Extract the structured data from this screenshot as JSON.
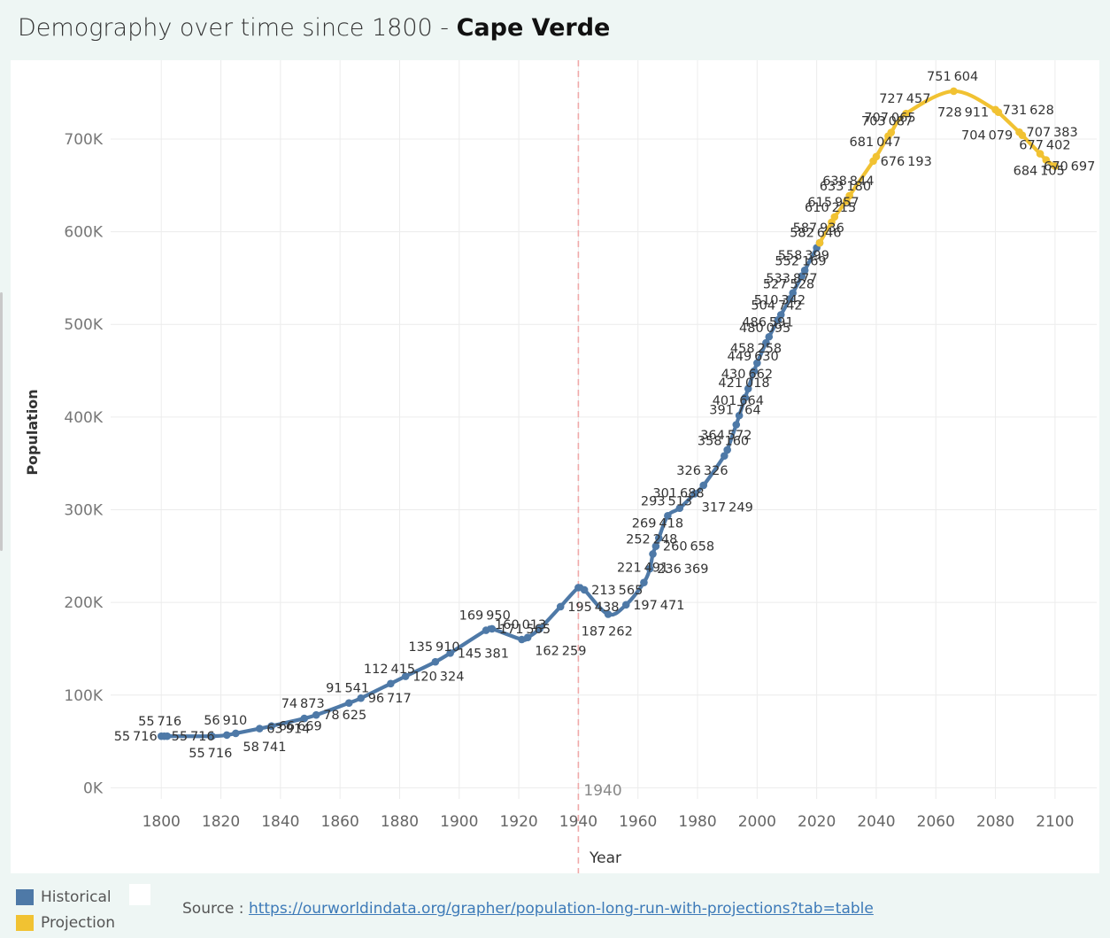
{
  "title": {
    "prefix": "Demography over time since 1800 - ",
    "country": "Cape Verde"
  },
  "legend": {
    "items": [
      {
        "label": "Historical",
        "color": "#4e79a7"
      },
      {
        "label": "Projection",
        "color": "#f1c232"
      }
    ]
  },
  "source": {
    "prefix": "Source : ",
    "link_text": "https://ourworldindata.org/grapher/population-long-run-with-projections?tab=table"
  },
  "chart_data": {
    "type": "line",
    "xlabel": "Year",
    "ylabel": "Population",
    "xlim": [
      1783,
      2114
    ],
    "ylim": [
      -12000,
      785000
    ],
    "xticks": [
      1800,
      1820,
      1840,
      1860,
      1880,
      1900,
      1920,
      1940,
      1960,
      1980,
      2000,
      2020,
      2040,
      2060,
      2080,
      2100
    ],
    "yticks": [
      {
        "value": 0,
        "label": "0K"
      },
      {
        "value": 100000,
        "label": "100K"
      },
      {
        "value": 200000,
        "label": "200K"
      },
      {
        "value": 300000,
        "label": "300K"
      },
      {
        "value": 400000,
        "label": "400K"
      },
      {
        "value": 500000,
        "label": "500K"
      },
      {
        "value": 600000,
        "label": "600K"
      },
      {
        "value": 700000,
        "label": "700K"
      }
    ],
    "grid": true,
    "reference_line": {
      "x": 1940,
      "label": "1940",
      "color": "#f0a9a9"
    },
    "series": [
      {
        "name": "Historical",
        "color": "#4e79a7",
        "points": [
          {
            "x": 1800,
            "y": 55716,
            "label": "55716"
          },
          {
            "x": 1801,
            "y": 55716,
            "label": "55716"
          },
          {
            "x": 1802,
            "y": 55716,
            "label": "55716"
          },
          {
            "x": 1817,
            "y": 55716,
            "label": "55716"
          },
          {
            "x": 1822,
            "y": 56910,
            "label": "56910"
          },
          {
            "x": 1825,
            "y": 58741,
            "label": "58741"
          },
          {
            "x": 1833,
            "y": 63914,
            "label": "63914"
          },
          {
            "x": 1837,
            "y": 66669,
            "label": "66669"
          },
          {
            "x": 1848,
            "y": 74873,
            "label": "74873"
          },
          {
            "x": 1852,
            "y": 78625,
            "label": "78625"
          },
          {
            "x": 1863,
            "y": 91541,
            "label": "91541"
          },
          {
            "x": 1867,
            "y": 96717,
            "label": "96717"
          },
          {
            "x": 1877,
            "y": 112415,
            "label": "112415"
          },
          {
            "x": 1882,
            "y": 120324,
            "label": "120324"
          },
          {
            "x": 1892,
            "y": 135910,
            "label": "135910"
          },
          {
            "x": 1897,
            "y": 145381,
            "label": "145381"
          },
          {
            "x": 1909,
            "y": 169950,
            "label": "169950"
          },
          {
            "x": 1911,
            "y": 171565,
            "label": "171565"
          },
          {
            "x": 1921,
            "y": 160013,
            "label": "160013"
          },
          {
            "x": 1923,
            "y": 162259,
            "label": "162259"
          },
          {
            "x": 1927,
            "y": 171565,
            "label": ""
          },
          {
            "x": 1934,
            "y": 195438,
            "label": "195438"
          },
          {
            "x": 1940,
            "y": 216000,
            "label": ""
          },
          {
            "x": 1942,
            "y": 213565,
            "label": "213565"
          },
          {
            "x": 1950,
            "y": 187262,
            "label": "187262"
          },
          {
            "x": 1956,
            "y": 197471,
            "label": "197471"
          },
          {
            "x": 1962,
            "y": 221491,
            "label": "221491"
          },
          {
            "x": 1964,
            "y": 236369,
            "label": "236369"
          },
          {
            "x": 1965,
            "y": 252248,
            "label": "252248"
          },
          {
            "x": 1966,
            "y": 260658,
            "label": "260658"
          },
          {
            "x": 1967,
            "y": 269418,
            "label": "269418"
          },
          {
            "x": 1970,
            "y": 293513,
            "label": "293513"
          },
          {
            "x": 1974,
            "y": 301688,
            "label": "301688"
          },
          {
            "x": 1979,
            "y": 317249,
            "label": "317249"
          },
          {
            "x": 1982,
            "y": 326326,
            "label": "326326"
          },
          {
            "x": 1989,
            "y": 358160,
            "label": "358160"
          },
          {
            "x": 1990,
            "y": 364572,
            "label": "364572"
          },
          {
            "x": 1993,
            "y": 391764,
            "label": "391764"
          },
          {
            "x": 1994,
            "y": 401664,
            "label": "401664"
          },
          {
            "x": 1996,
            "y": 421018,
            "label": "421018"
          },
          {
            "x": 1997,
            "y": 430662,
            "label": "430662"
          },
          {
            "x": 1999,
            "y": 449630,
            "label": "449630"
          },
          {
            "x": 2000,
            "y": 458258,
            "label": "458258"
          },
          {
            "x": 2003,
            "y": 480095,
            "label": "480095"
          },
          {
            "x": 2004,
            "y": 486591,
            "label": "486591"
          },
          {
            "x": 2007,
            "y": 504742,
            "label": "504742"
          },
          {
            "x": 2008,
            "y": 510342,
            "label": "510342"
          },
          {
            "x": 2011,
            "y": 527528,
            "label": "527528"
          },
          {
            "x": 2012,
            "y": 533877,
            "label": "533877"
          },
          {
            "x": 2015,
            "y": 552169,
            "label": "552169"
          },
          {
            "x": 2016,
            "y": 558399,
            "label": "558399"
          },
          {
            "x": 2020,
            "y": 582646,
            "label": "582646"
          },
          {
            "x": 2021,
            "y": 587936,
            "label": "587936"
          }
        ]
      },
      {
        "name": "Projection",
        "color": "#f1c232",
        "points": [
          {
            "x": 2021,
            "y": 587936,
            "label": ""
          },
          {
            "x": 2025,
            "y": 610215,
            "label": "610215"
          },
          {
            "x": 2026,
            "y": 615957,
            "label": "615957"
          },
          {
            "x": 2030,
            "y": 633180,
            "label": "633180"
          },
          {
            "x": 2031,
            "y": 638844,
            "label": "638844"
          },
          {
            "x": 2039,
            "y": 676193,
            "label": "676193"
          },
          {
            "x": 2040,
            "y": 681047,
            "label": "681047"
          },
          {
            "x": 2044,
            "y": 703087,
            "label": "703087"
          },
          {
            "x": 2045,
            "y": 707065,
            "label": "707065"
          },
          {
            "x": 2050,
            "y": 727457,
            "label": "727457"
          },
          {
            "x": 2066,
            "y": 751604,
            "label": "751604"
          },
          {
            "x": 2080,
            "y": 731628,
            "label": "731628"
          },
          {
            "x": 2081,
            "y": 728911,
            "label": "728911"
          },
          {
            "x": 2088,
            "y": 707383,
            "label": "707383"
          },
          {
            "x": 2089,
            "y": 704079,
            "label": "704079"
          },
          {
            "x": 2095,
            "y": 684105,
            "label": "684105"
          },
          {
            "x": 2097,
            "y": 677402,
            "label": "677402"
          },
          {
            "x": 2100,
            "y": 670697,
            "label": "670697"
          }
        ]
      }
    ]
  }
}
